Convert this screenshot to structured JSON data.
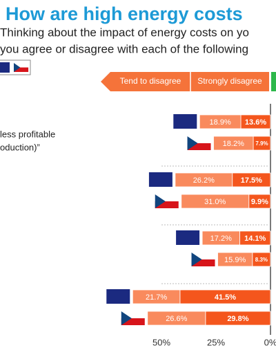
{
  "chart_data": {
    "type": "diverging-bar",
    "title": "How are high energy costs",
    "subtitle": [
      "Thinking about the impact of energy costs on yo",
      "you agree or disagree with each of the following"
    ],
    "annotations": [
      "less profitable",
      "oduction)”"
    ],
    "categories": [
      null,
      null,
      null,
      null,
      null,
      null,
      null,
      null
    ],
    "series": [
      {
        "name": "Strongly disagree",
        "color": "#f4561d",
        "values": [
          13.6,
          7.9,
          17.5,
          9.9,
          14.1,
          8.3,
          41.5,
          29.8
        ],
        "value_labels": [
          "13.6%",
          "7.9%",
          "17.5%",
          "9.9%",
          "14.1%",
          "8.3%",
          "41.5%",
          "29.8%"
        ]
      },
      {
        "name": "Tend to disagree",
        "color": "#f98a5d",
        "values": [
          18.9,
          18.2,
          26.2,
          31.0,
          17.2,
          15.9,
          21.7,
          26.6
        ],
        "value_labels": [
          "18.9%",
          "18.2%",
          "26.2%",
          "31.0%",
          "17.2%",
          "15.9%",
          "21.7%",
          "26.6%"
        ]
      }
    ],
    "xlim": [
      0,
      125
    ],
    "xticks": [
      {
        "value": 50,
        "label": "50%"
      },
      {
        "value": 25,
        "label": "25%"
      },
      {
        "value": 0,
        "label": "0%"
      }
    ]
  }
}
